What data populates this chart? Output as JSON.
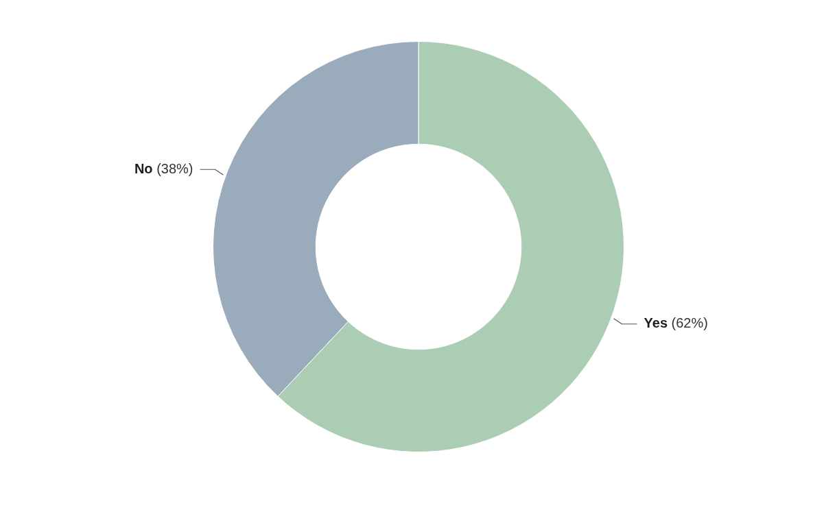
{
  "chart_data": {
    "type": "donut",
    "categories": [
      "Yes",
      "No"
    ],
    "values": [
      62,
      38
    ],
    "colors": [
      "#abcdb4",
      "#9aabbc"
    ],
    "value_labels": [
      "(62%)",
      "(38%)"
    ],
    "legend": false
  }
}
